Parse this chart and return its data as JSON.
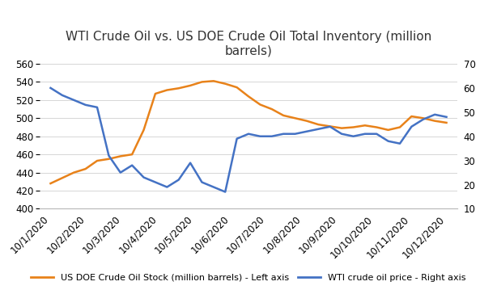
{
  "title": "WTI Crude Oil vs. US DOE Crude Oil Total Inventory (million\nbarrels)",
  "x_labels": [
    "10/1/2020",
    "10/2/2020",
    "10/3/2020",
    "10/4/2020",
    "10/5/2020",
    "10/6/2020",
    "10/7/2020",
    "10/8/2020",
    "10/9/2020",
    "10/10/2020",
    "10/11/2020",
    "10/12/2020"
  ],
  "doe_stock": [
    428,
    434,
    440,
    444,
    453,
    455,
    458,
    460,
    487,
    527,
    531,
    533,
    536,
    540,
    541,
    538,
    534,
    524,
    515,
    510,
    503,
    500,
    497,
    493,
    491,
    489,
    490,
    492,
    490,
    487,
    490,
    502,
    500,
    497,
    495
  ],
  "wti_price": [
    60,
    57,
    55,
    53,
    52,
    32,
    25,
    28,
    23,
    21,
    19,
    22,
    29,
    21,
    19,
    17,
    39,
    41,
    40,
    40,
    41,
    41,
    42,
    43,
    44,
    41,
    40,
    41,
    41,
    38,
    37,
    44,
    47,
    49,
    48
  ],
  "doe_color": "#E8821A",
  "wti_color": "#4472C4",
  "left_ylim": [
    400,
    560
  ],
  "right_ylim": [
    10,
    70
  ],
  "left_yticks": [
    400,
    420,
    440,
    460,
    480,
    500,
    520,
    540,
    560
  ],
  "right_yticks": [
    10,
    20,
    30,
    40,
    50,
    60,
    70
  ],
  "legend_doe": "US DOE Crude Oil Stock (million barrels) - Left axis",
  "legend_wti": "WTI crude oil price - Right axis",
  "background_color": "#ffffff",
  "title_fontsize": 11,
  "tick_fontsize": 8.5,
  "legend_fontsize": 8
}
